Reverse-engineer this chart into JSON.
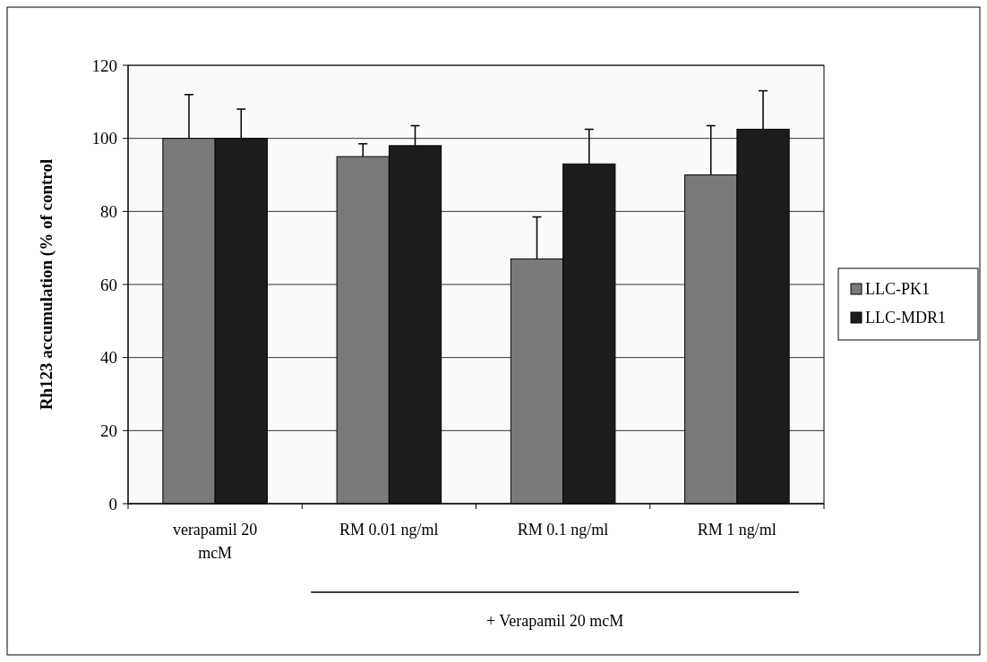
{
  "chart_data": {
    "type": "bar",
    "ylabel": "Rh123 accumulation (% of control",
    "categories": [
      "verapamil 20 mcM",
      "RM 0.01 ng/ml",
      "RM 0.1 ng/ml",
      "RM 1 ng/ml"
    ],
    "series": [
      {
        "name": "LLC-PK1",
        "color": "#7a7a7a",
        "values": [
          100,
          95,
          67,
          90
        ],
        "errors": [
          [
            100,
            112
          ],
          [
            95,
            98.5
          ],
          [
            67,
            78.5
          ],
          [
            90,
            103.5
          ]
        ]
      },
      {
        "name": "LLC-MDR1",
        "color": "#1c1c1c",
        "values": [
          100,
          98,
          93,
          102.5
        ],
        "errors": [
          [
            100,
            108
          ],
          [
            98,
            103.5
          ],
          [
            93,
            102.5
          ],
          [
            102.5,
            113
          ]
        ]
      }
    ],
    "ylim": [
      0,
      120
    ],
    "yticks": [
      0,
      20,
      40,
      60,
      80,
      100,
      120
    ],
    "grid": "y",
    "legend": "right",
    "annotations": [
      "+ Verapamil 20 mcM"
    ]
  }
}
